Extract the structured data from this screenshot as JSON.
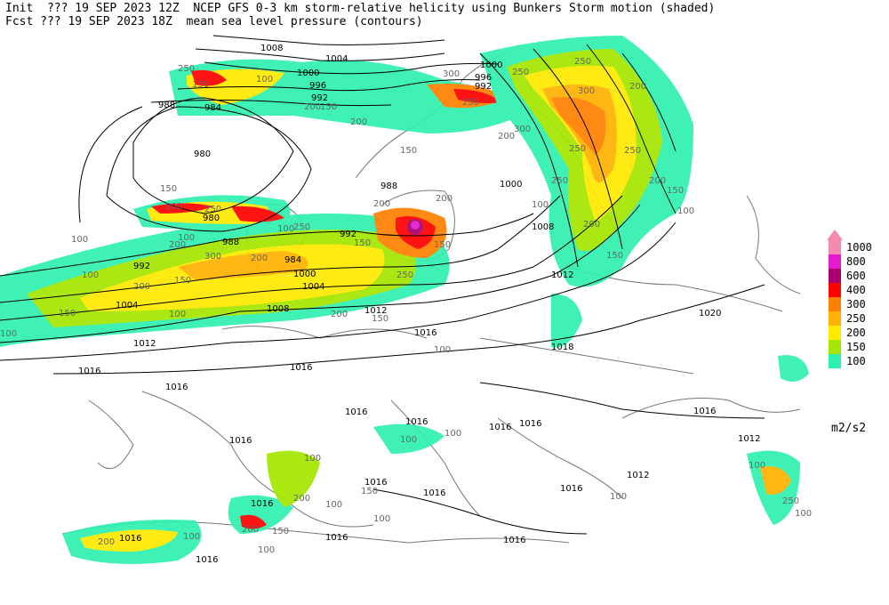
{
  "header": {
    "line1": "Init  ??? 19 SEP 2023 12Z  NCEP GFS 0-3 km storm-relative helicity using Bunkers Storm motion (shaded)",
    "line2": "Fcst ??? 19 SEP 2023 18Z  mean sea level pressure (contours)"
  },
  "legend": {
    "units": "m2/s2",
    "levels": [
      {
        "label": "1000",
        "color": "#f58ab0"
      },
      {
        "label": "800",
        "color": "#e21ad0"
      },
      {
        "label": "600",
        "color": "#a8006e"
      },
      {
        "label": "400",
        "color": "#ff0000"
      },
      {
        "label": "300",
        "color": "#ff7f00"
      },
      {
        "label": "250",
        "color": "#ffb300"
      },
      {
        "label": "200",
        "color": "#ffea00"
      },
      {
        "label": "150",
        "color": "#a4e600"
      },
      {
        "label": "100",
        "color": "#30f0b0"
      }
    ]
  },
  "isobar_labels": [
    "1008",
    "1004",
    "1000",
    "996",
    "992",
    "988",
    "984",
    "980",
    "1012",
    "1016",
    "1020",
    "1018"
  ],
  "helicity_labels": [
    "100",
    "150",
    "200",
    "250",
    "300"
  ]
}
